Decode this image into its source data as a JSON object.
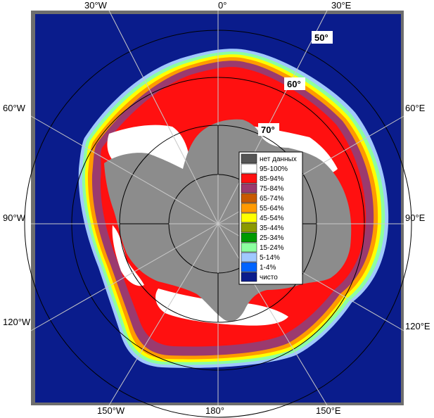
{
  "map": {
    "longitude_labels": {
      "top": [
        "30°W",
        "0°",
        "30°E"
      ],
      "bottom": [
        "150°W",
        "180°",
        "150°E"
      ],
      "left": [
        "60°W",
        "90°W",
        "120°W"
      ],
      "right": [
        "60°E",
        "90°E",
        "120°E"
      ]
    },
    "latitude_labels": [
      "50°",
      "60°",
      "70°"
    ],
    "colors": {
      "ocean": "#0a1c8c",
      "land": "#8c8c8c",
      "frame": "#6e6e6e",
      "grid": "#c8c8c8",
      "circle": "#000000"
    }
  },
  "legend": {
    "items": [
      {
        "label": "нет данных",
        "color": "#555555"
      },
      {
        "label": "95-100%",
        "color": "#ffffff"
      },
      {
        "label": "85-94%",
        "color": "#ff1010"
      },
      {
        "label": "75-84%",
        "color": "#9b3a6e"
      },
      {
        "label": "65-74%",
        "color": "#c85a00"
      },
      {
        "label": "55-64%",
        "color": "#ff9a00"
      },
      {
        "label": "45-54%",
        "color": "#ffff00"
      },
      {
        "label": "35-44%",
        "color": "#8c9a00"
      },
      {
        "label": "25-34%",
        "color": "#009a00"
      },
      {
        "label": "15-24%",
        "color": "#8cffa0"
      },
      {
        "label": "5-14%",
        "color": "#a0c8ff"
      },
      {
        "label": "1-4%",
        "color": "#0064ff"
      },
      {
        "label": "чисто",
        "color": "#0a1c8c"
      }
    ]
  }
}
